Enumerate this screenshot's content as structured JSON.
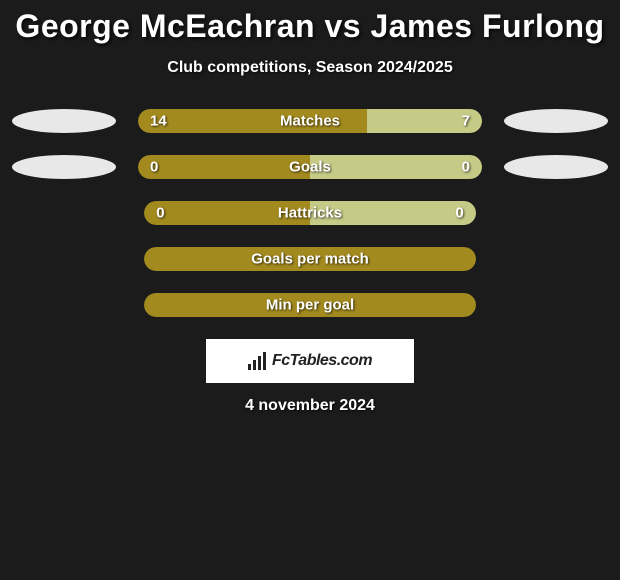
{
  "title": "George McEachran vs James Furlong",
  "subtitle": "Club competitions, Season 2024/2025",
  "date": "4 november 2024",
  "brand": "FcTables.com",
  "colors": {
    "background": "#1b1b1b",
    "bar_left": "#a38a1f",
    "bar_right": "#c5cb87",
    "bar_bg_neutral": "#a38a1f",
    "text": "#ffffff",
    "logo_bg": "#ffffff",
    "logo_fg": "#222222"
  },
  "stats": [
    {
      "label": "Matches",
      "left_value": "14",
      "right_value": "7",
      "left_pct": 66.7,
      "right_pct": 33.3,
      "show_icons": true,
      "left_color": "#a38a1f",
      "right_color": "#c5cb87"
    },
    {
      "label": "Goals",
      "left_value": "0",
      "right_value": "0",
      "left_pct": 50,
      "right_pct": 50,
      "show_icons": true,
      "left_color": "#a38a1f",
      "right_color": "#c5cb87"
    },
    {
      "label": "Hattricks",
      "left_value": "0",
      "right_value": "0",
      "left_pct": 50,
      "right_pct": 50,
      "show_icons": false,
      "left_color": "#a38a1f",
      "right_color": "#c5cb87"
    },
    {
      "label": "Goals per match",
      "left_value": "",
      "right_value": "",
      "left_pct": 100,
      "right_pct": 0,
      "show_icons": false,
      "left_color": "#a38a1f",
      "right_color": "#c5cb87"
    },
    {
      "label": "Min per goal",
      "left_value": "",
      "right_value": "",
      "left_pct": 100,
      "right_pct": 0,
      "show_icons": false,
      "left_color": "#a38a1f",
      "right_color": "#c5cb87"
    }
  ]
}
